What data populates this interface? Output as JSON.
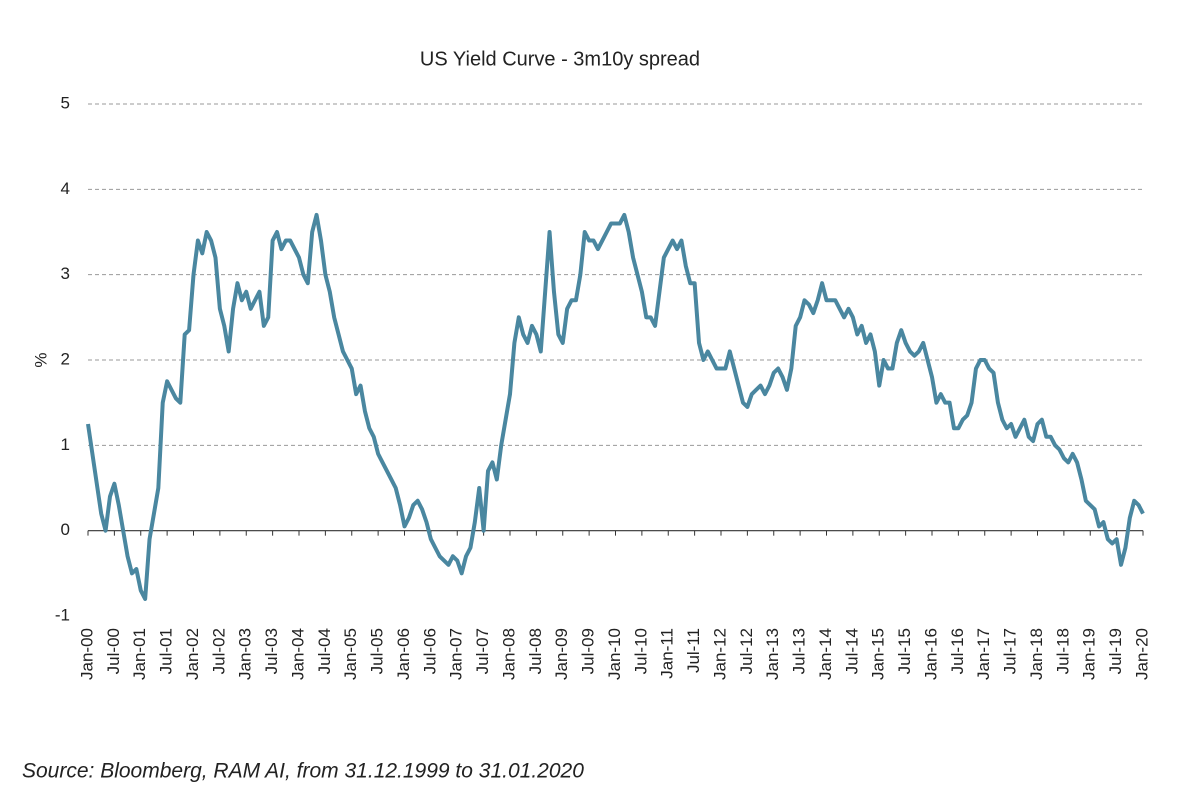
{
  "chart_data": {
    "type": "line",
    "title": "US Yield Curve - 3m10y spread",
    "y_label": "%",
    "source": "Source: Bloomberg, RAM AI, from 31.12.1999 to 31.01.2020",
    "x": [
      "2000-01",
      "2000-02",
      "2000-03",
      "2000-04",
      "2000-05",
      "2000-06",
      "2000-07",
      "2000-08",
      "2000-09",
      "2000-10",
      "2000-11",
      "2000-12",
      "2001-01",
      "2001-02",
      "2001-03",
      "2001-04",
      "2001-05",
      "2001-06",
      "2001-07",
      "2001-08",
      "2001-09",
      "2001-10",
      "2001-11",
      "2001-12",
      "2002-01",
      "2002-02",
      "2002-03",
      "2002-04",
      "2002-05",
      "2002-06",
      "2002-07",
      "2002-08",
      "2002-09",
      "2002-10",
      "2002-11",
      "2002-12",
      "2003-01",
      "2003-02",
      "2003-03",
      "2003-04",
      "2003-05",
      "2003-06",
      "2003-07",
      "2003-08",
      "2003-09",
      "2003-10",
      "2003-11",
      "2003-12",
      "2004-01",
      "2004-02",
      "2004-03",
      "2004-04",
      "2004-05",
      "2004-06",
      "2004-07",
      "2004-08",
      "2004-09",
      "2004-10",
      "2004-11",
      "2004-12",
      "2005-01",
      "2005-02",
      "2005-03",
      "2005-04",
      "2005-05",
      "2005-06",
      "2005-07",
      "2005-08",
      "2005-09",
      "2005-10",
      "2005-11",
      "2005-12",
      "2006-01",
      "2006-02",
      "2006-03",
      "2006-04",
      "2006-05",
      "2006-06",
      "2006-07",
      "2006-08",
      "2006-09",
      "2006-10",
      "2006-11",
      "2006-12",
      "2007-01",
      "2007-02",
      "2007-03",
      "2007-04",
      "2007-05",
      "2007-06",
      "2007-07",
      "2007-08",
      "2007-09",
      "2007-10",
      "2007-11",
      "2007-12",
      "2008-01",
      "2008-02",
      "2008-03",
      "2008-04",
      "2008-05",
      "2008-06",
      "2008-07",
      "2008-08",
      "2008-09",
      "2008-10",
      "2008-11",
      "2008-12",
      "2009-01",
      "2009-02",
      "2009-03",
      "2009-04",
      "2009-05",
      "2009-06",
      "2009-07",
      "2009-08",
      "2009-09",
      "2009-10",
      "2009-11",
      "2009-12",
      "2010-01",
      "2010-02",
      "2010-03",
      "2010-04",
      "2010-05",
      "2010-06",
      "2010-07",
      "2010-08",
      "2010-09",
      "2010-10",
      "2010-11",
      "2010-12",
      "2011-01",
      "2011-02",
      "2011-03",
      "2011-04",
      "2011-05",
      "2011-06",
      "2011-07",
      "2011-08",
      "2011-09",
      "2011-10",
      "2011-11",
      "2011-12",
      "2012-01",
      "2012-02",
      "2012-03",
      "2012-04",
      "2012-05",
      "2012-06",
      "2012-07",
      "2012-08",
      "2012-09",
      "2012-10",
      "2012-11",
      "2012-12",
      "2013-01",
      "2013-02",
      "2013-03",
      "2013-04",
      "2013-05",
      "2013-06",
      "2013-07",
      "2013-08",
      "2013-09",
      "2013-10",
      "2013-11",
      "2013-12",
      "2014-01",
      "2014-02",
      "2014-03",
      "2014-04",
      "2014-05",
      "2014-06",
      "2014-07",
      "2014-08",
      "2014-09",
      "2014-10",
      "2014-11",
      "2014-12",
      "2015-01",
      "2015-02",
      "2015-03",
      "2015-04",
      "2015-05",
      "2015-06",
      "2015-07",
      "2015-08",
      "2015-09",
      "2015-10",
      "2015-11",
      "2015-12",
      "2016-01",
      "2016-02",
      "2016-03",
      "2016-04",
      "2016-05",
      "2016-06",
      "2016-07",
      "2016-08",
      "2016-09",
      "2016-10",
      "2016-11",
      "2016-12",
      "2017-01",
      "2017-02",
      "2017-03",
      "2017-04",
      "2017-05",
      "2017-06",
      "2017-07",
      "2017-08",
      "2017-09",
      "2017-10",
      "2017-11",
      "2017-12",
      "2018-01",
      "2018-02",
      "2018-03",
      "2018-04",
      "2018-05",
      "2018-06",
      "2018-07",
      "2018-08",
      "2018-09",
      "2018-10",
      "2018-11",
      "2018-12",
      "2019-01",
      "2019-02",
      "2019-03",
      "2019-04",
      "2019-05",
      "2019-06",
      "2019-07",
      "2019-08",
      "2019-09",
      "2019-10",
      "2019-11",
      "2019-12",
      "2020-01"
    ],
    "series": [
      {
        "name": "3m10y spread",
        "color": "#4a87a0",
        "values": [
          1.25,
          0.9,
          0.55,
          0.2,
          0.0,
          0.4,
          0.55,
          0.3,
          0.0,
          -0.3,
          -0.5,
          -0.45,
          -0.7,
          -0.8,
          -0.1,
          0.2,
          0.5,
          1.5,
          1.75,
          1.65,
          1.55,
          1.5,
          2.3,
          2.35,
          3.0,
          3.4,
          3.25,
          3.5,
          3.4,
          3.2,
          2.6,
          2.4,
          2.1,
          2.6,
          2.9,
          2.7,
          2.8,
          2.6,
          2.7,
          2.8,
          2.4,
          2.5,
          3.4,
          3.5,
          3.3,
          3.4,
          3.4,
          3.3,
          3.2,
          3.0,
          2.9,
          3.5,
          3.7,
          3.4,
          3.0,
          2.8,
          2.5,
          2.3,
          2.1,
          2.0,
          1.9,
          1.6,
          1.7,
          1.4,
          1.2,
          1.1,
          0.9,
          0.8,
          0.7,
          0.6,
          0.5,
          0.3,
          0.05,
          0.15,
          0.3,
          0.35,
          0.25,
          0.1,
          -0.1,
          -0.2,
          -0.3,
          -0.35,
          -0.4,
          -0.3,
          -0.35,
          -0.5,
          -0.3,
          -0.2,
          0.1,
          0.5,
          0.0,
          0.7,
          0.8,
          0.6,
          1.0,
          1.3,
          1.6,
          2.2,
          2.5,
          2.3,
          2.2,
          2.4,
          2.3,
          2.1,
          2.8,
          3.5,
          2.8,
          2.3,
          2.2,
          2.6,
          2.7,
          2.7,
          3.0,
          3.5,
          3.4,
          3.4,
          3.3,
          3.4,
          3.5,
          3.6,
          3.6,
          3.6,
          3.7,
          3.5,
          3.2,
          3.0,
          2.8,
          2.5,
          2.5,
          2.4,
          2.8,
          3.2,
          3.3,
          3.4,
          3.3,
          3.4,
          3.1,
          2.9,
          2.9,
          2.2,
          2.0,
          2.1,
          2.0,
          1.9,
          1.9,
          1.9,
          2.1,
          1.9,
          1.7,
          1.5,
          1.45,
          1.6,
          1.65,
          1.7,
          1.6,
          1.7,
          1.85,
          1.9,
          1.8,
          1.65,
          1.9,
          2.4,
          2.5,
          2.7,
          2.65,
          2.55,
          2.7,
          2.9,
          2.7,
          2.7,
          2.7,
          2.6,
          2.5,
          2.6,
          2.5,
          2.3,
          2.4,
          2.2,
          2.3,
          2.1,
          1.7,
          2.0,
          1.9,
          1.9,
          2.2,
          2.35,
          2.2,
          2.1,
          2.05,
          2.1,
          2.2,
          2.0,
          1.8,
          1.5,
          1.6,
          1.5,
          1.5,
          1.2,
          1.2,
          1.3,
          1.35,
          1.5,
          1.9,
          2.0,
          2.0,
          1.9,
          1.85,
          1.5,
          1.3,
          1.2,
          1.25,
          1.1,
          1.2,
          1.3,
          1.1,
          1.05,
          1.25,
          1.3,
          1.1,
          1.1,
          1.0,
          0.95,
          0.85,
          0.8,
          0.9,
          0.8,
          0.6,
          0.35,
          0.3,
          0.25,
          0.05,
          0.1,
          -0.1,
          -0.15,
          -0.1,
          -0.4,
          -0.2,
          0.15,
          0.35,
          0.3,
          0.2
        ]
      }
    ],
    "xlim": [
      "2000-01",
      "2020-01"
    ],
    "xticks": [
      {
        "value": "2000-01",
        "label": "Jan-00"
      },
      {
        "value": "2000-07",
        "label": "Jul-00"
      },
      {
        "value": "2001-01",
        "label": "Jan-01"
      },
      {
        "value": "2001-07",
        "label": "Jul-01"
      },
      {
        "value": "2002-01",
        "label": "Jan-02"
      },
      {
        "value": "2002-07",
        "label": "Jul-02"
      },
      {
        "value": "2003-01",
        "label": "Jan-03"
      },
      {
        "value": "2003-07",
        "label": "Jul-03"
      },
      {
        "value": "2004-01",
        "label": "Jan-04"
      },
      {
        "value": "2004-07",
        "label": "Jul-04"
      },
      {
        "value": "2005-01",
        "label": "Jan-05"
      },
      {
        "value": "2005-07",
        "label": "Jul-05"
      },
      {
        "value": "2006-01",
        "label": "Jan-06"
      },
      {
        "value": "2006-07",
        "label": "Jul-06"
      },
      {
        "value": "2007-01",
        "label": "Jan-07"
      },
      {
        "value": "2007-07",
        "label": "Jul-07"
      },
      {
        "value": "2008-01",
        "label": "Jan-08"
      },
      {
        "value": "2008-07",
        "label": "Jul-08"
      },
      {
        "value": "2009-01",
        "label": "Jan-09"
      },
      {
        "value": "2009-07",
        "label": "Jul-09"
      },
      {
        "value": "2010-01",
        "label": "Jan-10"
      },
      {
        "value": "2010-07",
        "label": "Jul-10"
      },
      {
        "value": "2011-01",
        "label": "Jan-11"
      },
      {
        "value": "2011-07",
        "label": "Jul-11"
      },
      {
        "value": "2012-01",
        "label": "Jan-12"
      },
      {
        "value": "2012-07",
        "label": "Jul-12"
      },
      {
        "value": "2013-01",
        "label": "Jan-13"
      },
      {
        "value": "2013-07",
        "label": "Jul-13"
      },
      {
        "value": "2014-01",
        "label": "Jan-14"
      },
      {
        "value": "2014-07",
        "label": "Jul-14"
      },
      {
        "value": "2015-01",
        "label": "Jan-15"
      },
      {
        "value": "2015-07",
        "label": "Jul-15"
      },
      {
        "value": "2016-01",
        "label": "Jan-16"
      },
      {
        "value": "2016-07",
        "label": "Jul-16"
      },
      {
        "value": "2017-01",
        "label": "Jan-17"
      },
      {
        "value": "2017-07",
        "label": "Jul-17"
      },
      {
        "value": "2018-01",
        "label": "Jan-18"
      },
      {
        "value": "2018-07",
        "label": "Jul-18"
      },
      {
        "value": "2019-01",
        "label": "Jan-19"
      },
      {
        "value": "2019-07",
        "label": "Jul-19"
      },
      {
        "value": "2020-01",
        "label": "Jan-20"
      }
    ],
    "ylim": [
      -1,
      5
    ],
    "yticks": [
      -1,
      0,
      1,
      2,
      3,
      4,
      5
    ],
    "grid": true
  }
}
